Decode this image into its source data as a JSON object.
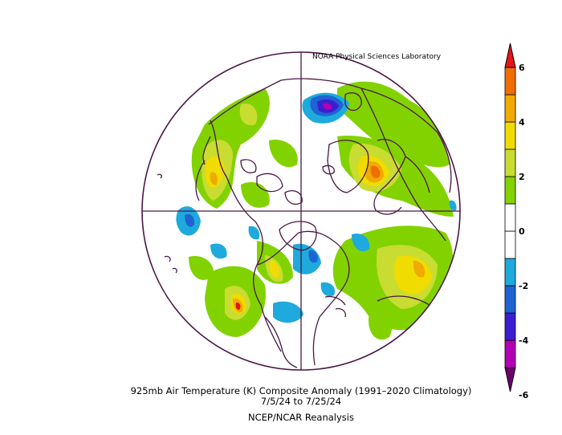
{
  "credit": "NOAA Physical Sciences Laboratory",
  "caption": {
    "line1": "925mb Air Temperature (K) Composite Anomaly (1991–2020 Climatology)",
    "line2": "7/5/24   to 7/25/24",
    "line3": "NCEP/NCAR Reanalysis"
  },
  "colorbar": {
    "labels": [
      "6",
      "4",
      "2",
      "0",
      "-2",
      "-4",
      "-6"
    ],
    "colors": [
      "#6e006e",
      "#b400b4",
      "#3c1ed2",
      "#1e64d2",
      "#1eaadc",
      "#ffffff",
      "#ffffff",
      "#82d200",
      "#c8dc32",
      "#f0dc00",
      "#f0aa00",
      "#f06e00",
      "#e61414"
    ]
  },
  "map": {
    "background": "#ffffff",
    "coast_color": "#4a1746"
  }
}
